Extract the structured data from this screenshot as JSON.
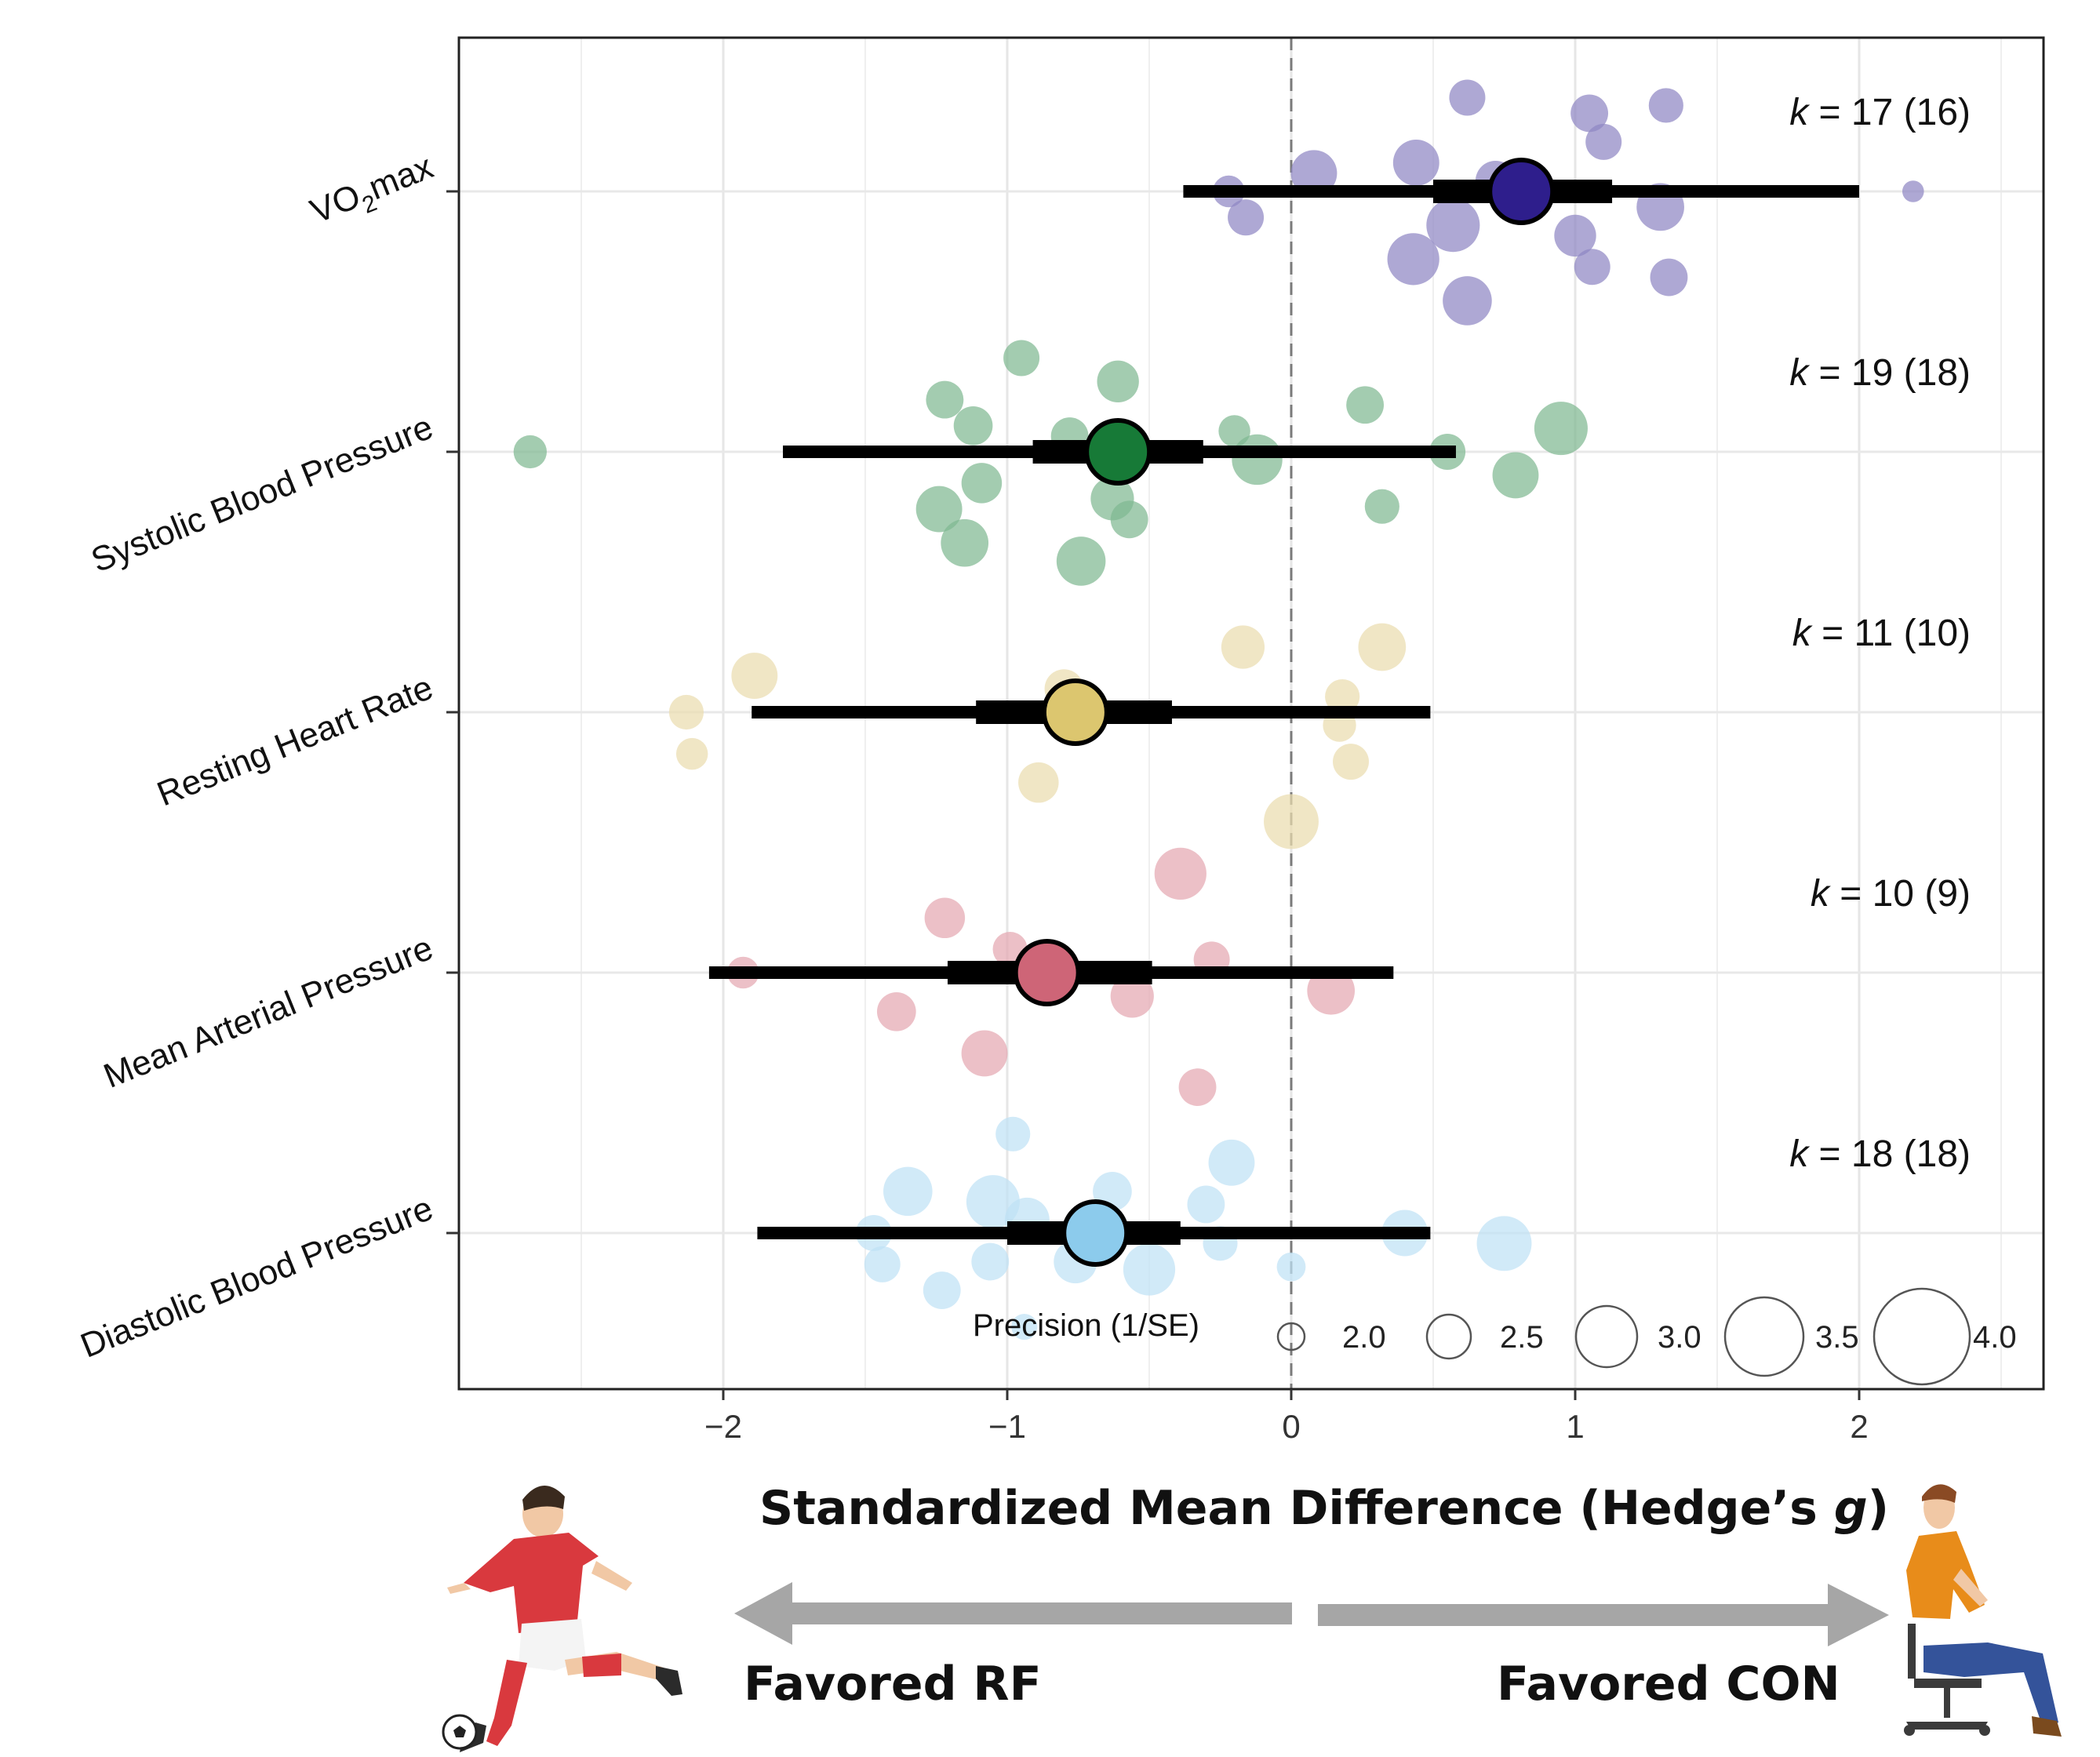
{
  "chart_data": {
    "type": "orchard",
    "xlabel": "Standardized Mean Difference (Hedge’s g)",
    "xlabel_prefix": "Standardized Mean Difference (Hedge’s ",
    "xlabel_italic": "g",
    "xlabel_suffix": ")",
    "xlim": [
      -2.95,
      2.65
    ],
    "xticks": [
      -2,
      -1,
      0,
      1,
      2
    ],
    "xtick_labels": [
      "−2",
      "−1",
      "0",
      "1",
      "2"
    ],
    "reference_line": 0,
    "direction_labels": {
      "left": "Favored RF",
      "right": "Favored CON"
    },
    "legend": {
      "title": "Precision (1/SE)",
      "values": [
        2.0,
        2.5,
        3.0,
        3.5,
        4.0
      ],
      "labels": [
        "2.0",
        "2.5",
        "3.0",
        "3.5",
        "4.0"
      ]
    },
    "series": [
      {
        "name": "VO₂max",
        "label_main": "VO",
        "label_sub": "2",
        "label_tail": "max",
        "k_text": "k = 17 (16)",
        "color": "#2e1e8c",
        "point_color": "#8f87c3",
        "estimate": 0.81,
        "ci": [
          0.5,
          1.13
        ],
        "pi": [
          -0.38,
          2.0
        ],
        "points": [
          {
            "x": 0.62,
            "j": -0.36,
            "p": 2.5
          },
          {
            "x": 1.05,
            "j": -0.3,
            "p": 2.6
          },
          {
            "x": 1.32,
            "j": -0.33,
            "p": 2.4
          },
          {
            "x": 1.1,
            "j": -0.19,
            "p": 2.5
          },
          {
            "x": 0.08,
            "j": -0.07,
            "p": 3.2
          },
          {
            "x": 0.44,
            "j": -0.11,
            "p": 3.2
          },
          {
            "x": 0.72,
            "j": -0.04,
            "p": 2.8
          },
          {
            "x": -0.22,
            "j": 0.0,
            "p": 2.2
          },
          {
            "x": 1.3,
            "j": 0.06,
            "p": 3.3
          },
          {
            "x": -0.16,
            "j": 0.1,
            "p": 2.5
          },
          {
            "x": 0.57,
            "j": 0.13,
            "p": 3.7
          },
          {
            "x": 1.0,
            "j": 0.17,
            "p": 2.9
          },
          {
            "x": 0.43,
            "j": 0.26,
            "p": 3.6
          },
          {
            "x": 1.06,
            "j": 0.29,
            "p": 2.5
          },
          {
            "x": 1.33,
            "j": 0.33,
            "p": 2.6
          },
          {
            "x": 0.62,
            "j": 0.42,
            "p": 3.4
          },
          {
            "x": 2.19,
            "j": 0.0,
            "p": 1.5
          }
        ]
      },
      {
        "name": "Systolic Blood Pressure",
        "label_main": "Systolic Blood Pressure",
        "k_text": "k = 19 (18)",
        "color": "#177a37",
        "point_color": "#7fb892",
        "estimate": -0.61,
        "ci": [
          -0.91,
          -0.31
        ],
        "pi": [
          -1.79,
          0.58
        ],
        "points": [
          {
            "x": -0.95,
            "j": -0.36,
            "p": 2.5
          },
          {
            "x": -0.61,
            "j": -0.27,
            "p": 2.9
          },
          {
            "x": -1.22,
            "j": -0.2,
            "p": 2.6
          },
          {
            "x": 0.26,
            "j": -0.18,
            "p": 2.6
          },
          {
            "x": -1.12,
            "j": -0.1,
            "p": 2.7
          },
          {
            "x": -0.78,
            "j": -0.06,
            "p": 2.6
          },
          {
            "x": -0.2,
            "j": -0.08,
            "p": 2.2
          },
          {
            "x": 0.95,
            "j": -0.09,
            "p": 3.7
          },
          {
            "x": -2.68,
            "j": 0.0,
            "p": 2.3
          },
          {
            "x": -0.12,
            "j": 0.03,
            "p": 3.5
          },
          {
            "x": 0.55,
            "j": 0.0,
            "p": 2.5
          },
          {
            "x": -1.09,
            "j": 0.12,
            "p": 2.8
          },
          {
            "x": 0.79,
            "j": 0.09,
            "p": 3.2
          },
          {
            "x": -1.24,
            "j": 0.22,
            "p": 3.2
          },
          {
            "x": -0.63,
            "j": 0.18,
            "p": 3.0
          },
          {
            "x": -0.57,
            "j": 0.26,
            "p": 2.6
          },
          {
            "x": 0.32,
            "j": 0.21,
            "p": 2.4
          },
          {
            "x": -1.15,
            "j": 0.35,
            "p": 3.3
          },
          {
            "x": -0.74,
            "j": 0.42,
            "p": 3.4
          }
        ]
      },
      {
        "name": "Resting Heart Rate",
        "label_main": "Resting Heart Rate",
        "k_text": "k = 11 (10)",
        "color": "#dcc66f",
        "point_color": "#eadcae",
        "estimate": -0.76,
        "ci": [
          -1.11,
          -0.42
        ],
        "pi": [
          -1.9,
          0.49
        ],
        "points": [
          {
            "x": -0.17,
            "j": -0.25,
            "p": 3.0
          },
          {
            "x": 0.32,
            "j": -0.25,
            "p": 3.3
          },
          {
            "x": -1.89,
            "j": -0.14,
            "p": 3.2
          },
          {
            "x": -0.8,
            "j": -0.09,
            "p": 2.7
          },
          {
            "x": 0.18,
            "j": -0.06,
            "p": 2.4
          },
          {
            "x": -2.13,
            "j": 0.0,
            "p": 2.4
          },
          {
            "x": 0.17,
            "j": 0.05,
            "p": 2.3
          },
          {
            "x": -2.11,
            "j": 0.16,
            "p": 2.2
          },
          {
            "x": 0.21,
            "j": 0.19,
            "p": 2.5
          },
          {
            "x": -0.89,
            "j": 0.27,
            "p": 2.8
          },
          {
            "x": 0.0,
            "j": 0.42,
            "p": 3.8
          }
        ]
      },
      {
        "name": "Mean Arterial Pressure",
        "label_main": "Mean Arterial Pressure",
        "k_text": "k = 10 (9)",
        "color": "#ce6577",
        "point_color": "#e4a7b2",
        "estimate": -0.86,
        "ci": [
          -1.21,
          -0.49
        ],
        "pi": [
          -2.05,
          0.36
        ],
        "points": [
          {
            "x": -0.39,
            "j": -0.38,
            "p": 3.6
          },
          {
            "x": -1.22,
            "j": -0.21,
            "p": 2.8
          },
          {
            "x": -0.99,
            "j": -0.09,
            "p": 2.4
          },
          {
            "x": -0.28,
            "j": -0.05,
            "p": 2.5
          },
          {
            "x": -1.93,
            "j": 0.0,
            "p": 2.2
          },
          {
            "x": 0.14,
            "j": 0.07,
            "p": 3.3
          },
          {
            "x": -0.56,
            "j": 0.09,
            "p": 3.0
          },
          {
            "x": -1.39,
            "j": 0.15,
            "p": 2.7
          },
          {
            "x": -1.08,
            "j": 0.31,
            "p": 3.2
          },
          {
            "x": -0.33,
            "j": 0.44,
            "p": 2.6
          }
        ]
      },
      {
        "name": "Diastolic Blood Pressure",
        "label_main": "Diastolic Blood Pressure",
        "k_text": "k = 18 (18)",
        "color": "#8ccbec",
        "point_color": "#bfe2f5",
        "estimate": -0.69,
        "ci": [
          -1.0,
          -0.39
        ],
        "pi": [
          -1.88,
          0.49
        ],
        "points": [
          {
            "x": -0.98,
            "j": -0.38,
            "p": 2.4
          },
          {
            "x": -0.21,
            "j": -0.27,
            "p": 3.2
          },
          {
            "x": -1.35,
            "j": -0.16,
            "p": 3.4
          },
          {
            "x": -0.63,
            "j": -0.16,
            "p": 2.7
          },
          {
            "x": -1.05,
            "j": -0.12,
            "p": 3.7
          },
          {
            "x": -0.3,
            "j": -0.11,
            "p": 2.6
          },
          {
            "x": -0.93,
            "j": -0.05,
            "p": 3.1
          },
          {
            "x": -1.47,
            "j": 0.0,
            "p": 2.5
          },
          {
            "x": 0.4,
            "j": 0.0,
            "p": 3.2
          },
          {
            "x": 0.75,
            "j": 0.04,
            "p": 3.8
          },
          {
            "x": -0.25,
            "j": 0.04,
            "p": 2.4
          },
          {
            "x": -1.06,
            "j": 0.11,
            "p": 2.6
          },
          {
            "x": -0.76,
            "j": 0.11,
            "p": 3.0
          },
          {
            "x": -0.5,
            "j": 0.14,
            "p": 3.6
          },
          {
            "x": 0.0,
            "j": 0.13,
            "p": 2.0
          },
          {
            "x": -1.44,
            "j": 0.12,
            "p": 2.5
          },
          {
            "x": -1.23,
            "j": 0.22,
            "p": 2.6
          },
          {
            "x": -0.94,
            "j": 0.36,
            "p": 1.8
          }
        ]
      }
    ]
  },
  "illustrations": {
    "left": "soccer-player",
    "right": "seated-person"
  }
}
